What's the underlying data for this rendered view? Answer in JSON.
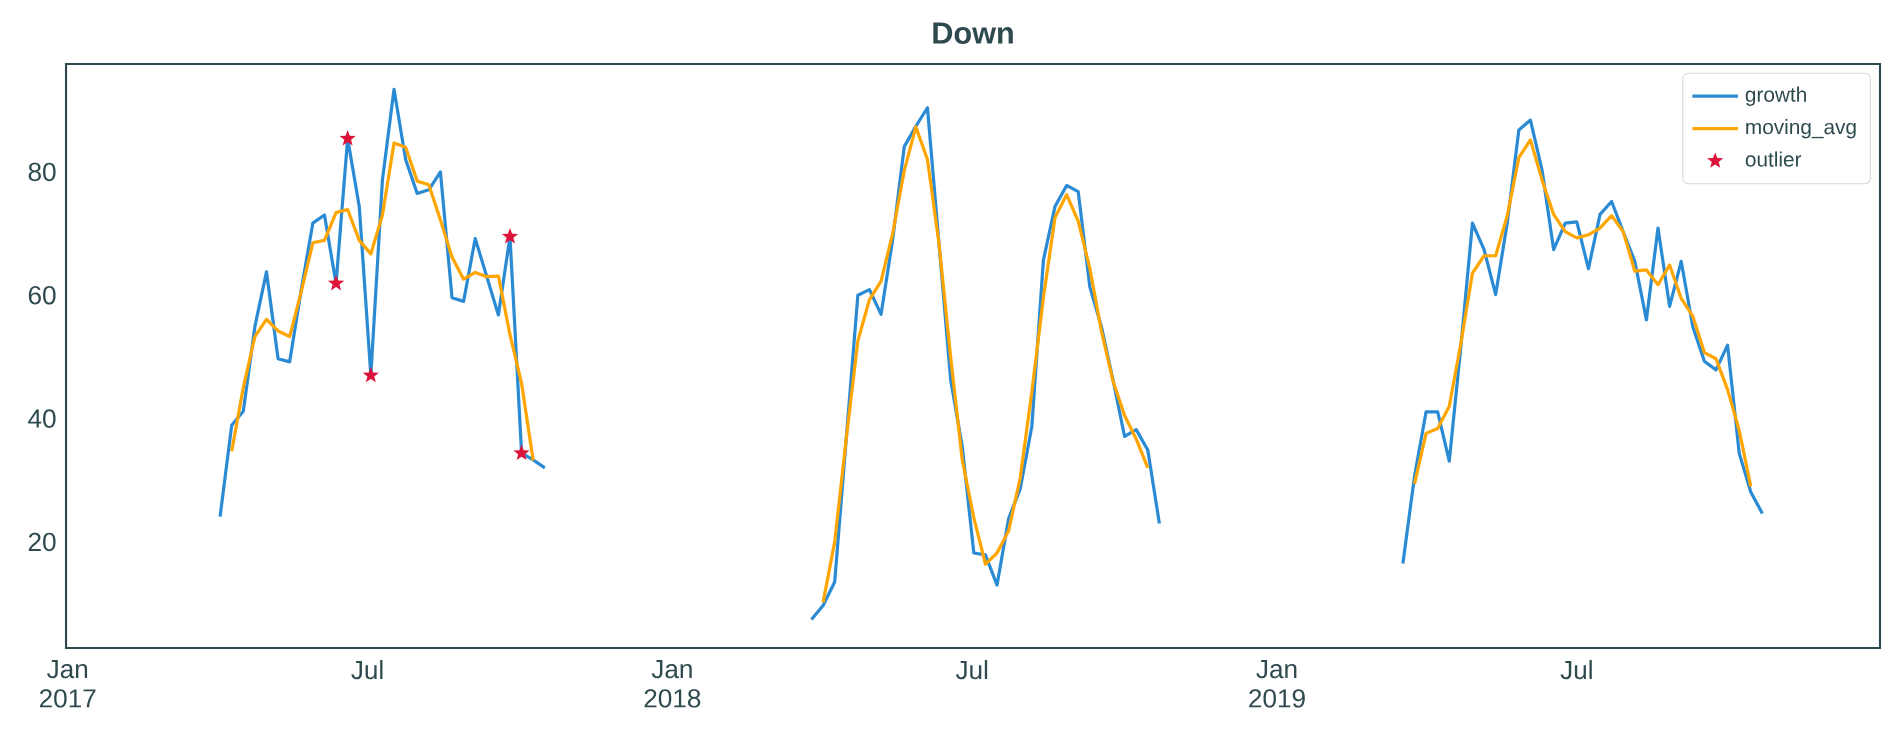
{
  "chart_data": {
    "type": "line",
    "title": "Down",
    "x": [
      "2017-04-03",
      "2017-04-10",
      "2017-04-17",
      "2017-04-24",
      "2017-05-01",
      "2017-05-08",
      "2017-05-15",
      "2017-05-22",
      "2017-05-29",
      "2017-06-05",
      "2017-06-12",
      "2017-06-19",
      "2017-06-26",
      "2017-07-03",
      "2017-07-10",
      "2017-07-17",
      "2017-07-24",
      "2017-07-31",
      "2017-08-07",
      "2017-08-14",
      "2017-08-21",
      "2017-08-28",
      "2017-09-04",
      "2017-09-11",
      "2017-09-18",
      "2017-09-25",
      "2017-10-02",
      "2017-10-09",
      "2017-10-16",
      "2018-01-01",
      "2018-03-26",
      "2018-04-02",
      "2018-04-09",
      "2018-04-16",
      "2018-04-23",
      "2018-04-30",
      "2018-05-07",
      "2018-05-14",
      "2018-05-21",
      "2018-05-28",
      "2018-06-04",
      "2018-06-11",
      "2018-06-18",
      "2018-06-25",
      "2018-07-02",
      "2018-07-09",
      "2018-07-16",
      "2018-07-23",
      "2018-07-30",
      "2018-08-06",
      "2018-08-13",
      "2018-08-20",
      "2018-08-27",
      "2018-09-03",
      "2018-09-10",
      "2018-09-17",
      "2018-09-24",
      "2018-10-01",
      "2018-10-08",
      "2018-10-15",
      "2018-10-22",
      "2019-01-01",
      "2019-03-18",
      "2019-03-25",
      "2019-04-01",
      "2019-04-08",
      "2019-04-15",
      "2019-04-22",
      "2019-04-29",
      "2019-05-06",
      "2019-05-13",
      "2019-05-20",
      "2019-05-27",
      "2019-06-03",
      "2019-06-10",
      "2019-06-17",
      "2019-06-24",
      "2019-07-01",
      "2019-07-08",
      "2019-07-15",
      "2019-07-22",
      "2019-07-29",
      "2019-08-05",
      "2019-08-12",
      "2019-08-19",
      "2019-08-26",
      "2019-09-02",
      "2019-09-09",
      "2019-09-16",
      "2019-09-23",
      "2019-09-30",
      "2019-10-07",
      "2019-10-14",
      "2019-10-21"
    ],
    "series": [
      {
        "name": "growth",
        "color": "#2a8bd4",
        "values": [
          24.1,
          38.9,
          41.2,
          54.9,
          63.8,
          49.7,
          49.2,
          60.9,
          71.7,
          73.0,
          61.9,
          85.4,
          74.4,
          47.0,
          78.7,
          93.4,
          82.0,
          76.5,
          77.1,
          80.0,
          59.6,
          59.0,
          69.2,
          63.0,
          56.8,
          69.5,
          34.4,
          33.3,
          32.0,
          null,
          7.4,
          9.7,
          13.5,
          36.8,
          60.0,
          60.9,
          56.9,
          69.0,
          84.1,
          87.4,
          90.4,
          68.3,
          46.3,
          35.5,
          18.2,
          17.9,
          13.0,
          23.8,
          28.6,
          38.7,
          65.7,
          74.4,
          77.8,
          76.8,
          61.4,
          54.9,
          46.3,
          37.1,
          38.2,
          34.9,
          23.0,
          null,
          16.5,
          30.6,
          41.1,
          41.1,
          33.1,
          51.7,
          71.7,
          67.4,
          60.1,
          71.7,
          86.8,
          88.4,
          80.3,
          67.4,
          71.7,
          71.9,
          64.3,
          73.1,
          75.2,
          70.3,
          65.5,
          56.0,
          70.9,
          58.2,
          65.5,
          54.9,
          49.3,
          47.9,
          51.9,
          34.4,
          28.1,
          24.6
        ]
      },
      {
        "name": "moving_avg",
        "color": "#ffa500",
        "values": [
          null,
          34.7,
          45.0,
          53.3,
          56.1,
          54.2,
          53.3,
          60.6,
          68.5,
          68.9,
          73.4,
          73.9,
          68.9,
          66.7,
          73.0,
          84.7,
          84.0,
          78.5,
          77.9,
          72.2,
          66.2,
          62.6,
          63.7,
          63.0,
          63.1,
          53.6,
          45.7,
          33.2,
          null,
          null,
          null,
          10.2,
          20.0,
          36.8,
          52.6,
          59.3,
          62.3,
          70.0,
          80.2,
          87.3,
          82.0,
          68.3,
          50.0,
          33.3,
          23.9,
          16.4,
          18.2,
          21.8,
          30.4,
          44.3,
          59.6,
          72.6,
          76.3,
          72.0,
          64.4,
          54.2,
          46.1,
          40.5,
          36.7,
          32.0,
          null,
          null,
          null,
          29.4,
          37.6,
          38.4,
          42.0,
          52.2,
          63.6,
          66.4,
          66.4,
          72.9,
          82.3,
          85.2,
          78.7,
          73.1,
          70.3,
          69.3,
          69.8,
          70.9,
          72.9,
          70.3,
          63.9,
          64.1,
          61.7,
          64.9,
          59.5,
          56.6,
          50.7,
          49.7,
          44.7,
          38.1,
          29.0,
          null
        ]
      },
      {
        "name": "outlier",
        "color": "#dc143c",
        "type": "scatter",
        "marker": "star",
        "x": [
          "2017-06-12",
          "2017-06-19",
          "2017-07-03",
          "2017-09-25",
          "2017-10-02"
        ],
        "values": [
          61.9,
          85.4,
          47.0,
          69.5,
          34.4
        ]
      }
    ],
    "xlim": [
      "2016-12-31",
      "2019-12-31"
    ],
    "xticks": [
      {
        "value": "2017-01-01",
        "label": "Jan 2017"
      },
      {
        "value": "2017-07-01",
        "label": "Jul"
      },
      {
        "value": "2018-01-01",
        "label": "Jan 2018"
      },
      {
        "value": "2018-07-01",
        "label": "Jul"
      },
      {
        "value": "2019-01-01",
        "label": "Jan 2019"
      },
      {
        "value": "2019-07-01",
        "label": "Jul"
      }
    ],
    "ylim": [
      2.8,
      97.5
    ],
    "yticks": [
      20,
      40,
      60,
      80
    ],
    "grid": false,
    "legend": "top right"
  }
}
